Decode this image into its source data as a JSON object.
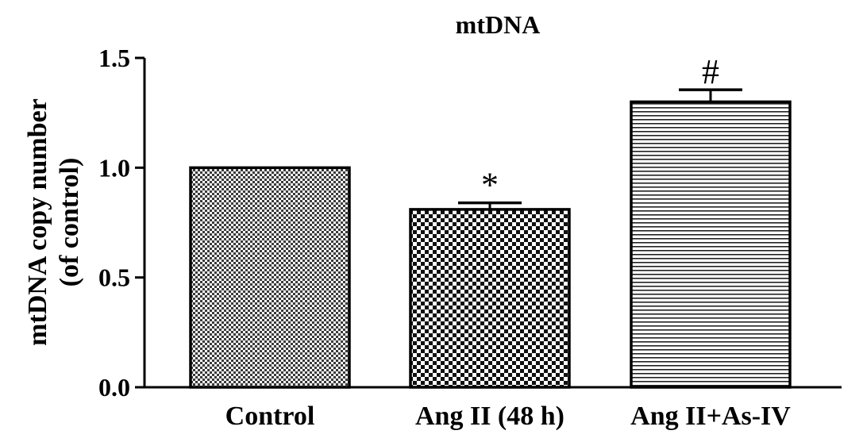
{
  "chart_data": {
    "type": "bar",
    "title": "mtDNA",
    "xlabel": "",
    "ylabel_lines": [
      "mtDNA copy number",
      "(of control)"
    ],
    "categories": [
      "Control",
      "Ang II (48 h)",
      "Ang II+As-IV"
    ],
    "values": [
      1.0,
      0.81,
      1.3
    ],
    "errors": [
      0.0,
      0.03,
      0.055
    ],
    "annotations": [
      "",
      "*",
      "#"
    ],
    "ylim": [
      0,
      1.5
    ],
    "yticks": [
      "0.0",
      "0.5",
      "1.0",
      "1.5"
    ],
    "ytick_values": [
      0,
      0.5,
      1.0,
      1.5
    ],
    "patterns": [
      "fine-checker",
      "coarse-checker",
      "horizontal-lines"
    ],
    "grid": false,
    "legend": "none"
  }
}
